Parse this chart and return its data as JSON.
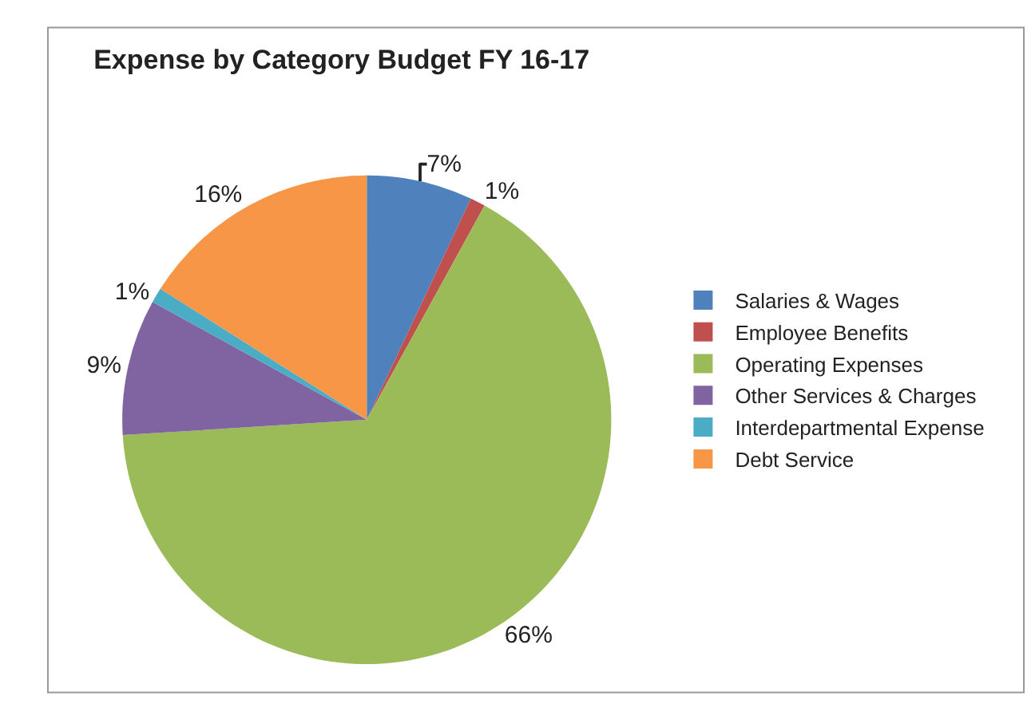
{
  "chart_data": {
    "type": "pie",
    "title": "Expense by Category Budget FY 16-17",
    "categories": [
      "Salaries & Wages",
      "Employee Benefits",
      "Operating Expenses",
      "Other Services & Charges",
      "Interdepartmental Expense",
      "Debt Service"
    ],
    "values": [
      7,
      1,
      66,
      9,
      1,
      16
    ],
    "value_labels": [
      "7%",
      "1%",
      "66%",
      "9%",
      "1%",
      "16%"
    ],
    "colors": [
      "#4f81bd",
      "#c0504d",
      "#9bbb59",
      "#8064a2",
      "#4bacc6",
      "#f79646"
    ],
    "legend": "right"
  }
}
